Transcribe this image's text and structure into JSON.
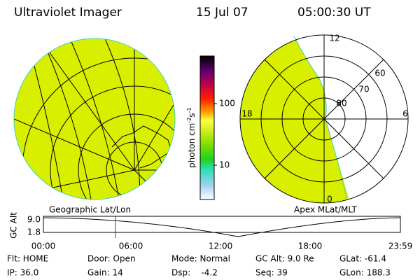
{
  "header": {
    "instrument": "Ultraviolet Imager",
    "date": "15 Jul 07",
    "time": "05:00:30 UT"
  },
  "maps": {
    "left_label": "Geographic Lat/Lon",
    "right_label": "Apex MLat/MLT",
    "polar_labels": [
      "12",
      "60",
      "70",
      "80",
      "18",
      "6",
      "0"
    ]
  },
  "colorbar": {
    "label": "photon cm",
    "exp1": "-2",
    "unit_s": "s",
    "exp2": "-1",
    "ticks": [
      "100",
      "10"
    ]
  },
  "timeline": {
    "ylabel": "GC Alt",
    "yticks": [
      "9.0",
      "1.8"
    ],
    "xticks": [
      "00:00",
      "06:00",
      "12:00",
      "18:00",
      "23:59"
    ]
  },
  "footer": {
    "rows": [
      [
        "Flt: HOME",
        "Door: Open",
        "Mode: Normal",
        "GC Alt: 9.0 Re",
        "GLat: -61.4"
      ],
      [
        "IP: 36.0",
        "Gain: 14",
        "Dsp:    -4.2",
        "Seq: 39",
        "GLon: 188.3"
      ]
    ]
  }
}
